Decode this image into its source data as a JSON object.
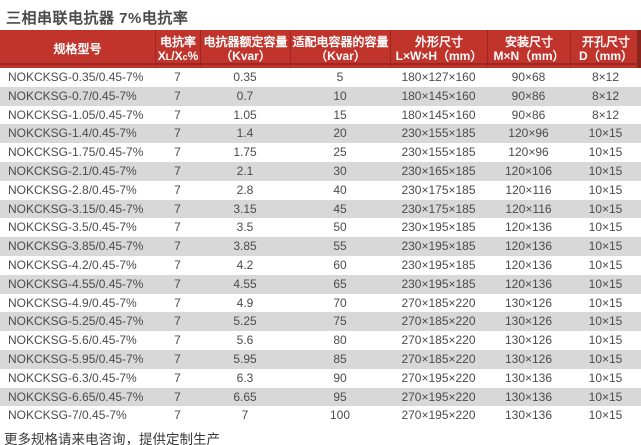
{
  "page": {
    "title": "三相串联电抗器 7%电抗率",
    "footer": "更多规格请来电咨询，提供定制生产"
  },
  "colors": {
    "header_bg": "#c1342c",
    "header_divider": "#9a2721",
    "header_edge": "#8a231c",
    "row_alt_bg": "#d8d8d8",
    "body_text": "#4b4b4b"
  },
  "table": {
    "header": {
      "model": "规格型号",
      "rate_line1": "电抗率",
      "rate_x1": "X",
      "rate_sub1": "L",
      "rate_x2": "/X",
      "rate_sub2": "c",
      "rate_pct": "%",
      "reactor_capacity_line1": "电抗器额定容量",
      "reactor_capacity_line2": "（Kvar）",
      "capacitor_capacity_line1": "适配电容器的容量",
      "capacitor_capacity_line2": "（Kvar）",
      "dimensions_line1": "外形尺寸",
      "dimensions_line2": "L×W×H（mm）",
      "mounting_line1": "安装尺寸",
      "mounting_line2": "M×N（mm）",
      "hole_line1": "开孔尺寸",
      "hole_line2": "D（mm）"
    },
    "rows": [
      {
        "model": "NOKCKSG-0.35/0.45-7%",
        "reactance_rate": "7",
        "rated_capacity_kvar": "0.35",
        "capacitor_capacity_kvar": "5",
        "dimensions_lwh_mm": "180×127×160",
        "mounting_mn_mm": "90×68",
        "hole_d_mm": "8×12"
      },
      {
        "model": "NOKCKSG-0.7/0.45-7%",
        "reactance_rate": "7",
        "rated_capacity_kvar": "0.7",
        "capacitor_capacity_kvar": "10",
        "dimensions_lwh_mm": "180×145×160",
        "mounting_mn_mm": "90×86",
        "hole_d_mm": "8×12"
      },
      {
        "model": "NOKCKSG-1.05/0.45-7%",
        "reactance_rate": "7",
        "rated_capacity_kvar": "1.05",
        "capacitor_capacity_kvar": "15",
        "dimensions_lwh_mm": "180×145×160",
        "mounting_mn_mm": "90×86",
        "hole_d_mm": "8×12"
      },
      {
        "model": "NOKCKSG-1.4/0.45-7%",
        "reactance_rate": "7",
        "rated_capacity_kvar": "1.4",
        "capacitor_capacity_kvar": "20",
        "dimensions_lwh_mm": "230×155×185",
        "mounting_mn_mm": "120×96",
        "hole_d_mm": "10×15"
      },
      {
        "model": "NOKCKSG-1.75/0.45-7%",
        "reactance_rate": "7",
        "rated_capacity_kvar": "1.75",
        "capacitor_capacity_kvar": "25",
        "dimensions_lwh_mm": "230×155×185",
        "mounting_mn_mm": "120×96",
        "hole_d_mm": "10×15"
      },
      {
        "model": "NOKCKSG-2.1/0.45-7%",
        "reactance_rate": "7",
        "rated_capacity_kvar": "2.1",
        "capacitor_capacity_kvar": "30",
        "dimensions_lwh_mm": "230×165×185",
        "mounting_mn_mm": "120×106",
        "hole_d_mm": "10×15"
      },
      {
        "model": "NOKCKSG-2.8/0.45-7%",
        "reactance_rate": "7",
        "rated_capacity_kvar": "2.8",
        "capacitor_capacity_kvar": "40",
        "dimensions_lwh_mm": "230×175×185",
        "mounting_mn_mm": "120×116",
        "hole_d_mm": "10×15"
      },
      {
        "model": "NOKCKSG-3.15/0.45-7%",
        "reactance_rate": "7",
        "rated_capacity_kvar": "3.15",
        "capacitor_capacity_kvar": "45",
        "dimensions_lwh_mm": "230×175×185",
        "mounting_mn_mm": "120×116",
        "hole_d_mm": "10×15"
      },
      {
        "model": "NOKCKSG-3.5/0.45-7%",
        "reactance_rate": "7",
        "rated_capacity_kvar": "3.5",
        "capacitor_capacity_kvar": "50",
        "dimensions_lwh_mm": "230×195×185",
        "mounting_mn_mm": "120×136",
        "hole_d_mm": "10×15"
      },
      {
        "model": "NOKCKSG-3.85/0.45-7%",
        "reactance_rate": "7",
        "rated_capacity_kvar": "3.85",
        "capacitor_capacity_kvar": "55",
        "dimensions_lwh_mm": "230×195×185",
        "mounting_mn_mm": "120×136",
        "hole_d_mm": "10×15"
      },
      {
        "model": "NOKCKSG-4.2/0.45-7%",
        "reactance_rate": "7",
        "rated_capacity_kvar": "4.2",
        "capacitor_capacity_kvar": "60",
        "dimensions_lwh_mm": "230×195×185",
        "mounting_mn_mm": "120×136",
        "hole_d_mm": "10×15"
      },
      {
        "model": "NOKCKSG-4.55/0.45-7%",
        "reactance_rate": "7",
        "rated_capacity_kvar": "4.55",
        "capacitor_capacity_kvar": "65",
        "dimensions_lwh_mm": "230×195×185",
        "mounting_mn_mm": "120×136",
        "hole_d_mm": "10×15"
      },
      {
        "model": "NOKCKSG-4.9/0.45-7%",
        "reactance_rate": "7",
        "rated_capacity_kvar": "4.9",
        "capacitor_capacity_kvar": "70",
        "dimensions_lwh_mm": "270×185×220",
        "mounting_mn_mm": "130×126",
        "hole_d_mm": "10×15"
      },
      {
        "model": "NOKCKSG-5.25/0.45-7%",
        "reactance_rate": "7",
        "rated_capacity_kvar": "5.25",
        "capacitor_capacity_kvar": "75",
        "dimensions_lwh_mm": "270×185×220",
        "mounting_mn_mm": "130×126",
        "hole_d_mm": "10×15"
      },
      {
        "model": "NOKCKSG-5.6/0.45-7%",
        "reactance_rate": "7",
        "rated_capacity_kvar": "5.6",
        "capacitor_capacity_kvar": "80",
        "dimensions_lwh_mm": "270×185×220",
        "mounting_mn_mm": "130×126",
        "hole_d_mm": "10×15"
      },
      {
        "model": "NOKCKSG-5.95/0.45-7%",
        "reactance_rate": "7",
        "rated_capacity_kvar": "5.95",
        "capacitor_capacity_kvar": "85",
        "dimensions_lwh_mm": "270×185×220",
        "mounting_mn_mm": "130×126",
        "hole_d_mm": "10×15"
      },
      {
        "model": "NOKCKSG-6.3/0.45-7%",
        "reactance_rate": "7",
        "rated_capacity_kvar": "6.3",
        "capacitor_capacity_kvar": "90",
        "dimensions_lwh_mm": "270×195×220",
        "mounting_mn_mm": "130×136",
        "hole_d_mm": "10×15"
      },
      {
        "model": "NOKCKSG-6.65/0.45-7%",
        "reactance_rate": "7",
        "rated_capacity_kvar": "6.65",
        "capacitor_capacity_kvar": "95",
        "dimensions_lwh_mm": "270×195×220",
        "mounting_mn_mm": "130×136",
        "hole_d_mm": "10×15"
      },
      {
        "model": "NOKCKSG-7/0.45-7%",
        "reactance_rate": "7",
        "rated_capacity_kvar": "7",
        "capacitor_capacity_kvar": "100",
        "dimensions_lwh_mm": "270×195×220",
        "mounting_mn_mm": "130×136",
        "hole_d_mm": "10×15"
      }
    ]
  }
}
